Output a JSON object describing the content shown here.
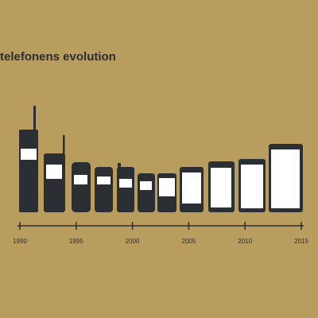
{
  "chart_data": {
    "type": "timeline",
    "title": "telefonens evolution",
    "xlim": [
      1990,
      2015
    ],
    "xticks": [
      1990,
      1995,
      2000,
      2005,
      2010,
      2015
    ]
  }
}
